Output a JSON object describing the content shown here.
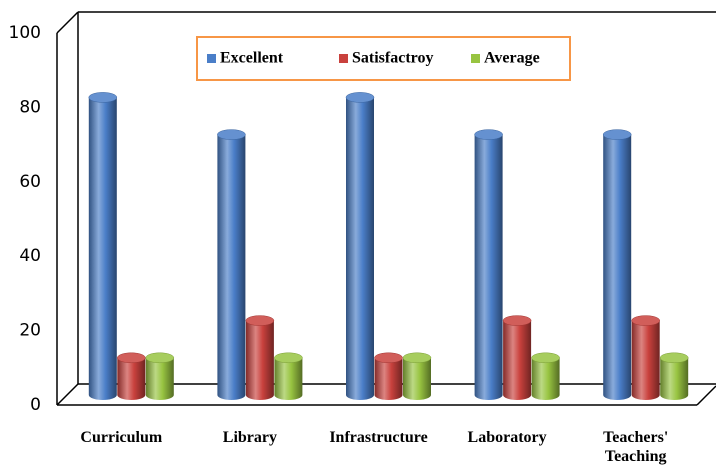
{
  "chart_data": {
    "type": "bar3d",
    "categories": [
      "Curriculum",
      "Library",
      "Infrastructure",
      "Laboratory",
      "Teachers'\nTeaching"
    ],
    "series": [
      {
        "name": "Excellent",
        "color": "#4a7ec8",
        "values": [
          80,
          70,
          80,
          70,
          70
        ]
      },
      {
        "name": "Satisfactroy",
        "color": "#c9413d",
        "values": [
          10,
          20,
          10,
          20,
          20
        ]
      },
      {
        "name": "Average",
        "color": "#98c441",
        "values": [
          10,
          10,
          10,
          10,
          10
        ]
      }
    ],
    "ylim": [
      0,
      100
    ],
    "yticks": [
      0,
      20,
      40,
      60,
      80,
      100
    ],
    "legend": "top",
    "legend_border": "#f79646"
  }
}
